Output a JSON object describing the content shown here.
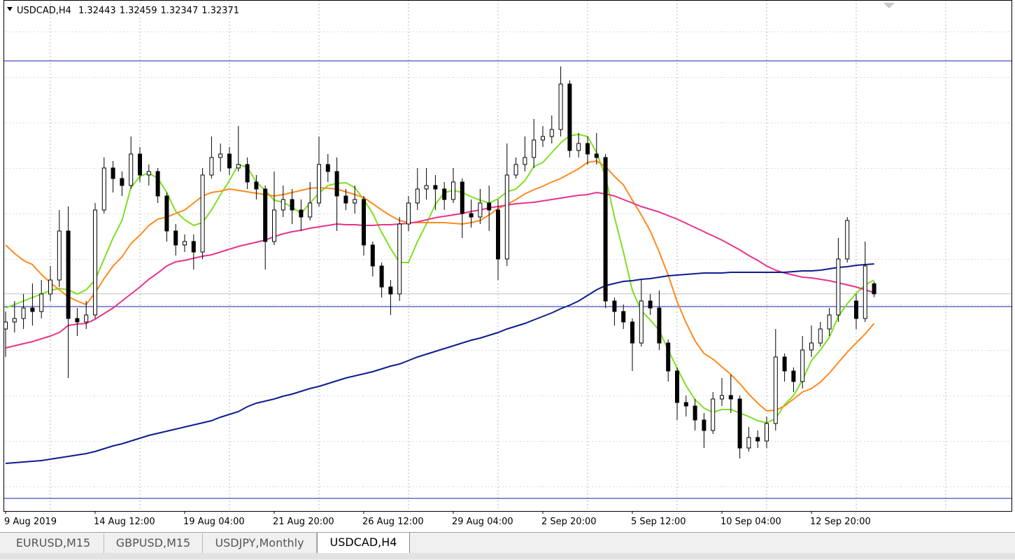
{
  "chart_data": {
    "type": "candlestick",
    "title": "USDCAD,H4",
    "categories": [
      "9 Aug 2019",
      null,
      null,
      null,
      null,
      null,
      null,
      null,
      null,
      null,
      "14 Aug 12:00",
      null,
      null,
      null,
      null,
      null,
      null,
      null,
      null,
      null,
      "19 Aug 04:00",
      null,
      null,
      null,
      null,
      null,
      null,
      null,
      null,
      null,
      "21 Aug 20:00",
      null,
      null,
      null,
      null,
      null,
      null,
      null,
      null,
      null,
      "26 Aug 12:00",
      null,
      null,
      null,
      null,
      null,
      null,
      null,
      null,
      null,
      "29 Aug 04:00",
      null,
      null,
      null,
      null,
      null,
      null,
      null,
      null,
      null,
      "2 Sep 20:00",
      null,
      null,
      null,
      null,
      null,
      null,
      null,
      null,
      null,
      "5 Sep 12:00",
      null,
      null,
      null,
      null,
      null,
      null,
      null,
      null,
      null,
      "10 Sep 04:00",
      null,
      null,
      null,
      null,
      null,
      null,
      null,
      null,
      null,
      "12 Sep 20:00",
      null,
      null,
      null,
      null,
      null,
      null,
      null
    ],
    "open": [
      1.3212,
      1.3217,
      1.32195,
      1.3227,
      1.32245,
      1.3237,
      1.3247,
      1.3282,
      1.32195,
      1.3217,
      1.3222,
      1.3297,
      1.3327,
      1.33195,
      1.33145,
      1.3337,
      1.3322,
      1.33245,
      1.3307,
      1.3282,
      1.3272,
      1.32745,
      1.3267,
      1.3322,
      1.33345,
      1.3337,
      1.3327,
      1.33295,
      1.3317,
      1.3312,
      1.32745,
      1.3297,
      1.33045,
      1.3297,
      1.3292,
      1.3302,
      1.33295,
      1.33245,
      1.3307,
      1.3302,
      1.33045,
      1.3272,
      1.3257,
      1.3242,
      1.3237,
      1.3287,
      1.3302,
      1.3312,
      1.33145,
      1.3312,
      1.33045,
      1.3317,
      1.32945,
      1.3292,
      1.3302,
      1.3297,
      1.3262,
      1.3322,
      1.33295,
      1.33345,
      1.3347,
      1.33495,
      1.33545,
      1.3387,
      1.33395,
      1.33445,
      1.3337,
      1.33345,
      1.3232,
      1.32245,
      1.3217,
      1.3202,
      1.3232,
      1.3227,
      1.3202,
      1.3182,
      1.31595,
      1.3157,
      1.3147,
      1.31395,
      1.3162,
      1.31645,
      1.3162,
      1.3127,
      1.31345,
      1.3132,
      1.31445,
      1.3192,
      1.3182,
      1.31745,
      1.3197,
      1.3202,
      1.3212,
      1.3222,
      1.3262,
      1.3232,
      1.32195,
      1.32443
    ],
    "high": [
      1.32245,
      1.3232,
      1.3237,
      1.32445,
      1.3247,
      1.3257,
      1.3297,
      1.32995,
      1.3227,
      1.3232,
      1.3302,
      1.33345,
      1.3332,
      1.33245,
      1.33495,
      1.3342,
      1.33295,
      1.3327,
      1.33095,
      1.3287,
      1.32795,
      1.32795,
      1.3327,
      1.33495,
      1.33445,
      1.3342,
      1.3357,
      1.33345,
      1.3322,
      1.33145,
      1.33245,
      1.33145,
      1.3312,
      1.33045,
      1.3317,
      1.33495,
      1.3337,
      1.33345,
      1.3312,
      1.33145,
      1.3307,
      1.32745,
      1.32595,
      1.3247,
      1.3292,
      1.3307,
      1.3327,
      1.3327,
      1.3322,
      1.3317,
      1.3327,
      1.33195,
      1.33045,
      1.3312,
      1.33145,
      1.33045,
      1.33445,
      1.33345,
      1.33495,
      1.3362,
      1.3357,
      1.33645,
      1.33995,
      1.33895,
      1.3352,
      1.33495,
      1.3352,
      1.3337,
      1.32345,
      1.32295,
      1.32195,
      1.3247,
      1.3237,
      1.32395,
      1.32045,
      1.31845,
      1.31645,
      1.3162,
      1.3152,
      1.3167,
      1.3177,
      1.31795,
      1.31645,
      1.3142,
      1.31395,
      1.31495,
      1.3212,
      1.31945,
      1.31845,
      1.3207,
      1.32145,
      1.3217,
      1.3227,
      1.3277,
      1.3292,
      1.3237,
      1.32745,
      1.32459
    ],
    "low": [
      1.3192,
      1.32095,
      1.3212,
      1.32145,
      1.32195,
      1.3232,
      1.3242,
      1.3177,
      1.3207,
      1.3212,
      1.32195,
      1.32945,
      1.33095,
      1.3307,
      1.3312,
      1.3317,
      1.33145,
      1.3302,
      1.32745,
      1.32645,
      1.3267,
      1.32545,
      1.3262,
      1.33195,
      1.33245,
      1.3322,
      1.33245,
      1.3312,
      1.33045,
      1.32545,
      1.3272,
      1.3292,
      1.3287,
      1.3282,
      1.32895,
      1.32995,
      1.3317,
      1.3282,
      1.3297,
      1.32945,
      1.32645,
      1.32495,
      1.32345,
      1.3222,
      1.3232,
      1.3282,
      1.3297,
      1.33045,
      1.3297,
      1.3297,
      1.3302,
      1.3277,
      1.32845,
      1.3287,
      1.3282,
      1.3247,
      1.3257,
      1.33195,
      1.33245,
      1.3327,
      1.3342,
      1.33445,
      1.33495,
      1.33345,
      1.33345,
      1.33295,
      1.33295,
      1.3227,
      1.32145,
      1.3212,
      1.3182,
      1.31995,
      1.3222,
      1.3197,
      1.31745,
      1.3147,
      1.31495,
      1.31395,
      1.3127,
      1.3137,
      1.3157,
      1.3152,
      1.31195,
      1.31245,
      1.3127,
      1.3127,
      1.31395,
      1.31745,
      1.3167,
      1.31695,
      1.3192,
      1.31995,
      1.3207,
      1.3217,
      1.32595,
      1.3212,
      1.3217,
      1.32347
    ],
    "close": [
      1.3217,
      1.32195,
      1.3227,
      1.32245,
      1.3237,
      1.3247,
      1.3282,
      1.32195,
      1.3217,
      1.3222,
      1.3297,
      1.3327,
      1.33195,
      1.33145,
      1.3337,
      1.3322,
      1.33245,
      1.3307,
      1.3282,
      1.3272,
      1.32745,
      1.3267,
      1.3322,
      1.33345,
      1.3337,
      1.3327,
      1.33295,
      1.3317,
      1.3312,
      1.32745,
      1.3297,
      1.33045,
      1.3297,
      1.3292,
      1.3302,
      1.33295,
      1.33245,
      1.3307,
      1.3302,
      1.33045,
      1.3272,
      1.3257,
      1.3242,
      1.3237,
      1.3287,
      1.3302,
      1.3312,
      1.33145,
      1.3312,
      1.33045,
      1.3317,
      1.32945,
      1.3292,
      1.3302,
      1.3297,
      1.3262,
      1.3322,
      1.33295,
      1.33345,
      1.3347,
      1.33495,
      1.33545,
      1.3387,
      1.33395,
      1.33445,
      1.3337,
      1.33345,
      1.3232,
      1.32245,
      1.3217,
      1.3202,
      1.3232,
      1.3227,
      1.3202,
      1.3182,
      1.31595,
      1.3157,
      1.3147,
      1.31395,
      1.3162,
      1.31645,
      1.3162,
      1.3127,
      1.31345,
      1.3132,
      1.31445,
      1.3192,
      1.3182,
      1.31745,
      1.3197,
      1.3202,
      1.3212,
      1.3222,
      1.3262,
      1.32895,
      1.32195,
      1.3257,
      1.32371
    ],
    "series": [
      {
        "color": "#7ee021",
        "values": [
          1.3227,
          1.32295,
          1.3232,
          1.32345,
          1.3237,
          1.32395,
          1.3241,
          1.324,
          1.3237,
          1.324,
          1.3247,
          1.3262,
          1.3277,
          1.32895,
          1.3313,
          1.3321,
          1.33235,
          1.33195,
          1.33095,
          1.3296,
          1.329,
          1.3286,
          1.3288,
          1.3297,
          1.3308,
          1.3318,
          1.33295,
          1.33275,
          1.3317,
          1.3311,
          1.3304,
          1.33025,
          1.3299,
          1.32945,
          1.3302,
          1.3309,
          1.33145,
          1.3316,
          1.33165,
          1.3313,
          1.33045,
          1.32945,
          1.3281,
          1.32695,
          1.32595,
          1.32595,
          1.32745,
          1.3287,
          1.3301,
          1.33095,
          1.3311,
          1.33095,
          1.33065,
          1.3304,
          1.3302,
          1.3305,
          1.331,
          1.3312,
          1.3318,
          1.3328,
          1.3331,
          1.3338,
          1.3345,
          1.335,
          1.3351,
          1.33495,
          1.3338,
          1.3321,
          1.3292,
          1.3267,
          1.32395,
          1.3225,
          1.32185,
          1.3211,
          1.3197,
          1.3184,
          1.31715,
          1.31615,
          1.31555,
          1.31525,
          1.31545,
          1.31545,
          1.3152,
          1.31495,
          1.31465,
          1.3145,
          1.3148,
          1.3158,
          1.31645,
          1.31755,
          1.31895,
          1.3197,
          1.3206,
          1.3221,
          1.323,
          1.32375,
          1.32435,
          1.3247
        ]
      },
      {
        "color": "#ff8a1e",
        "values": [
          1.3272,
          1.3266,
          1.3261,
          1.3258,
          1.3251,
          1.3245,
          1.324,
          1.3235,
          1.3232,
          1.32295,
          1.3238,
          1.3248,
          1.3257,
          1.32635,
          1.3273,
          1.3279,
          1.3286,
          1.32905,
          1.3292,
          1.32945,
          1.3297,
          1.3302,
          1.3307,
          1.33095,
          1.33105,
          1.3312,
          1.3311,
          1.331,
          1.3309,
          1.3308,
          1.3307,
          1.3308,
          1.33095,
          1.3311,
          1.33125,
          1.3313,
          1.33125,
          1.3312,
          1.331,
          1.3308,
          1.3306,
          1.33015,
          1.3297,
          1.3293,
          1.32895,
          1.3288,
          1.3288,
          1.3288,
          1.3288,
          1.3288,
          1.32875,
          1.3287,
          1.3288,
          1.32895,
          1.32935,
          1.3298,
          1.3301,
          1.33045,
          1.33085,
          1.33115,
          1.3314,
          1.3317,
          1.33195,
          1.3323,
          1.33265,
          1.3331,
          1.3332,
          1.3328,
          1.3321,
          1.3315,
          1.3304,
          1.32935,
          1.3282,
          1.3267,
          1.32505,
          1.32315,
          1.32165,
          1.32035,
          1.31945,
          1.31905,
          1.3185,
          1.31795,
          1.3173,
          1.31655,
          1.3159,
          1.31535,
          1.3154,
          1.3157,
          1.3162,
          1.3167,
          1.31695,
          1.3174,
          1.31805,
          1.3188,
          1.31955,
          1.3202,
          1.32085,
          1.3216
        ]
      },
      {
        "color": "#e8338c",
        "values": [
          1.31985,
          1.32,
          1.32015,
          1.3203,
          1.3205,
          1.3207,
          1.32095,
          1.32145,
          1.32155,
          1.3216,
          1.3219,
          1.3223,
          1.3227,
          1.3232,
          1.3237,
          1.3242,
          1.32475,
          1.3252,
          1.3257,
          1.326,
          1.3261,
          1.32625,
          1.3264,
          1.3265,
          1.3267,
          1.3269,
          1.3271,
          1.32725,
          1.3274,
          1.32755,
          1.3278,
          1.328,
          1.32815,
          1.32825,
          1.3284,
          1.3285,
          1.3286,
          1.3287,
          1.32865,
          1.32865,
          1.3286,
          1.3286,
          1.32865,
          1.32865,
          1.3287,
          1.32875,
          1.32885,
          1.329,
          1.32915,
          1.32925,
          1.32935,
          1.32945,
          1.3296,
          1.3297,
          1.32985,
          1.32995,
          1.33005,
          1.33015,
          1.3302,
          1.33025,
          1.33035,
          1.33045,
          1.33055,
          1.33065,
          1.33075,
          1.3308,
          1.33095,
          1.33085,
          1.3307,
          1.33045,
          1.3302,
          1.32995,
          1.32975,
          1.32955,
          1.3293,
          1.32905,
          1.32875,
          1.32845,
          1.32815,
          1.32785,
          1.32755,
          1.3272,
          1.32685,
          1.32645,
          1.3261,
          1.3257,
          1.3254,
          1.3252,
          1.32505,
          1.3249,
          1.32485,
          1.32475,
          1.32465,
          1.3245,
          1.32435,
          1.3242,
          1.324,
          1.3238
        ]
      },
      {
        "color": "#0d1c8f",
        "values": [
          1.3116,
          1.31165,
          1.3117,
          1.31175,
          1.3118,
          1.3119,
          1.312,
          1.3121,
          1.3122,
          1.3123,
          1.31245,
          1.31265,
          1.31285,
          1.313,
          1.3132,
          1.3134,
          1.3136,
          1.31375,
          1.3139,
          1.31405,
          1.3142,
          1.31435,
          1.3145,
          1.31465,
          1.3149,
          1.3151,
          1.3153,
          1.31565,
          1.3159,
          1.31605,
          1.3162,
          1.3164,
          1.31655,
          1.31675,
          1.31695,
          1.3171,
          1.3173,
          1.3175,
          1.3177,
          1.31785,
          1.318,
          1.31815,
          1.31835,
          1.31855,
          1.3187,
          1.31895,
          1.3192,
          1.3194,
          1.3196,
          1.3198,
          1.32,
          1.3202,
          1.3204,
          1.32055,
          1.32075,
          1.32095,
          1.3212,
          1.3214,
          1.3216,
          1.32185,
          1.3221,
          1.32235,
          1.32265,
          1.3229,
          1.3232,
          1.3236,
          1.324,
          1.3243,
          1.32445,
          1.3246,
          1.32465,
          1.32475,
          1.3248,
          1.3249,
          1.325,
          1.32505,
          1.3251,
          1.32515,
          1.3252,
          1.3252,
          1.3252,
          1.32525,
          1.32525,
          1.32525,
          1.32525,
          1.32525,
          1.32525,
          1.32525,
          1.3253,
          1.32535,
          1.32535,
          1.3254,
          1.3255,
          1.3256,
          1.32565,
          1.32575,
          1.3258,
          1.32585
        ]
      }
    ],
    "hlines": [
      1.34035,
      1.3228,
      1.3091
    ],
    "hline_color": "#1f1fa8",
    "up_color": "#ffffff",
    "down_color": "#000000",
    "ylim": [
      1.3082,
      1.3447
    ],
    "grid": true
  },
  "tabs": [
    "EURUSD,M15",
    "GBPUSD,M15",
    "USDJPY,Monthly",
    "USDCAD,H4"
  ]
}
